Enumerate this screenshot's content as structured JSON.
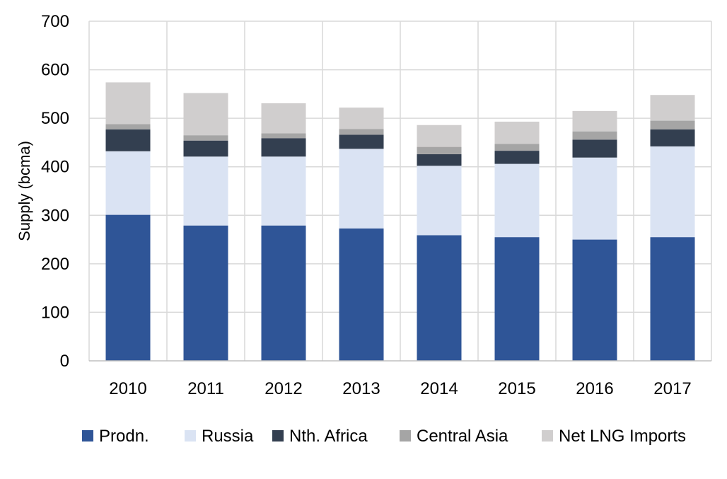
{
  "chart_data": {
    "type": "bar",
    "stacked": true,
    "title": "",
    "xlabel": "",
    "ylabel": "Supply (bcma)",
    "ylim": [
      0,
      700
    ],
    "yticks": [
      0,
      100,
      200,
      300,
      400,
      500,
      600,
      700
    ],
    "grid": true,
    "legend_position": "bottom",
    "categories": [
      "2010",
      "2011",
      "2012",
      "2013",
      "2014",
      "2015",
      "2016",
      "2017"
    ],
    "series": [
      {
        "name": "Prodn.",
        "color": "#2f5597",
        "values": [
          301,
          279,
          279,
          273,
          259,
          255,
          250,
          255
        ]
      },
      {
        "name": "Russia",
        "color": "#dae3f3",
        "values": [
          131,
          142,
          142,
          164,
          143,
          151,
          169,
          187
        ]
      },
      {
        "name": "Nth. Africa",
        "color": "#333f50",
        "values": [
          45,
          33,
          38,
          29,
          24,
          27,
          37,
          35
        ]
      },
      {
        "name": "Central Asia",
        "color": "#a5a5a5",
        "values": [
          11,
          11,
          10,
          12,
          15,
          14,
          17,
          18
        ]
      },
      {
        "name": "Net LNG Imports",
        "color": "#d0cece",
        "values": [
          86,
          87,
          62,
          44,
          45,
          46,
          42,
          53
        ]
      }
    ]
  }
}
